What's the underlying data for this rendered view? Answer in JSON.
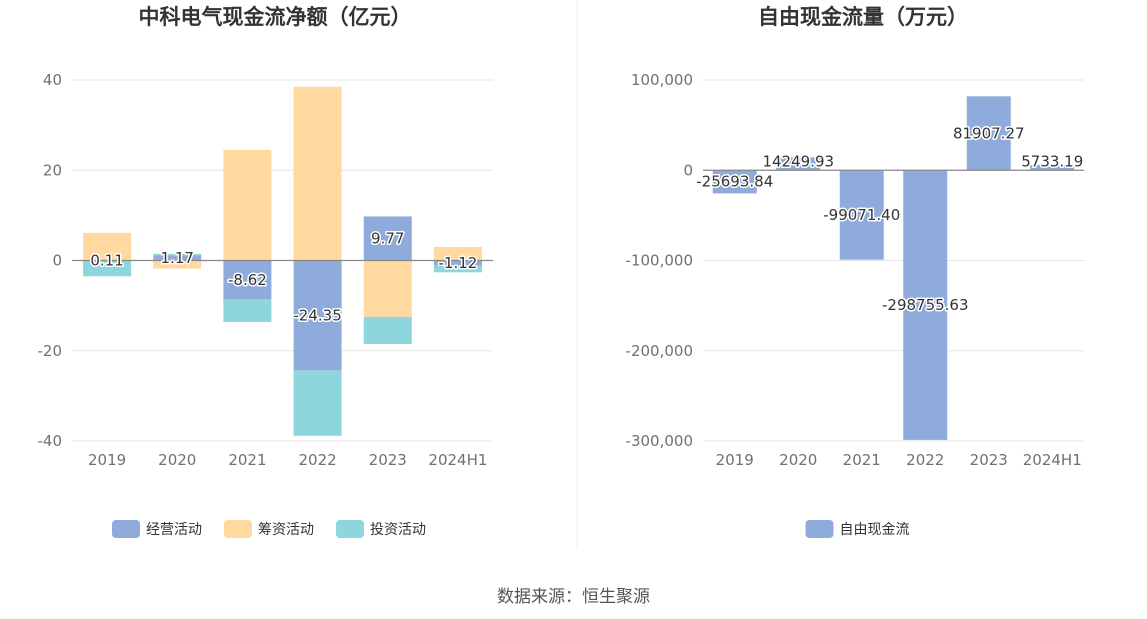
{
  "source_text": "数据来源：恒生聚源",
  "chart_data": [
    {
      "type": "bar",
      "stacked": true,
      "title": "中科电气现金流净额（亿元）",
      "categories": [
        "2019",
        "2020",
        "2021",
        "2022",
        "2023",
        "2024H1"
      ],
      "ylim": [
        -40,
        40
      ],
      "yticks": [
        40,
        20,
        0,
        -20,
        -40
      ],
      "grid": true,
      "legend_position": "bottom-center",
      "series": [
        {
          "name": "经营活动",
          "color": "#8fabdc",
          "values": [
            0.11,
            1.17,
            -8.62,
            -24.35,
            9.77,
            -1.12
          ]
        },
        {
          "name": "筹资活动",
          "color": "#ffd9a0",
          "values": [
            6.0,
            -1.8,
            24.5,
            38.5,
            -12.5,
            3.0
          ]
        },
        {
          "name": "投资活动",
          "color": "#8cd6dc",
          "values": [
            -3.5,
            0.3,
            -5.0,
            -14.5,
            -6.0,
            -1.5
          ]
        }
      ],
      "data_labels": [
        "0.11",
        "1.17",
        "-8.62",
        "-24.35",
        "9.77",
        "-1.12"
      ]
    },
    {
      "type": "bar",
      "title": "自由现金流量（万元）",
      "categories": [
        "2019",
        "2020",
        "2021",
        "2022",
        "2023",
        "2024H1"
      ],
      "ylim": [
        -300000,
        100000
      ],
      "yticks": [
        100000,
        0,
        -100000,
        -200000,
        -300000
      ],
      "ytick_labels": [
        "100,000",
        "0",
        "-100,000",
        "-200,000",
        "-300,000"
      ],
      "grid": true,
      "legend_position": "bottom-center",
      "series": [
        {
          "name": "自由现金流",
          "color": "#8fabdc",
          "values": [
            -25693.84,
            14249.93,
            -99071.4,
            -298755.63,
            81907.27,
            5733.19
          ]
        }
      ],
      "data_labels": [
        "-25693.84",
        "14249.93",
        "-99071.40",
        "-298755.63",
        "81907.27",
        "5733.19"
      ]
    }
  ]
}
